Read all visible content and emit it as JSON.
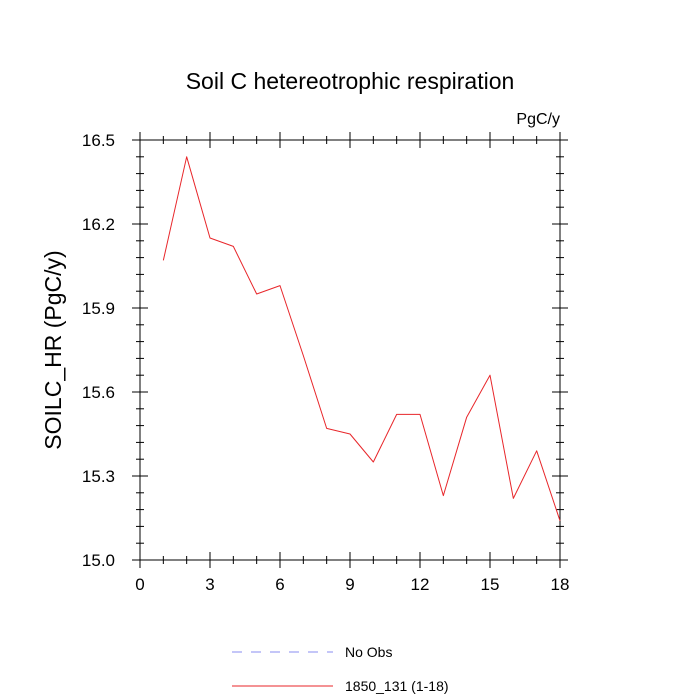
{
  "chart_data": {
    "type": "line",
    "title": "Soil C hetereotrophic respiration",
    "units": "PgC/y",
    "xlabel": "",
    "ylabel": "SOILC_HR  (PgC/y)",
    "xlim": [
      0,
      18
    ],
    "ylim": [
      15.0,
      16.5
    ],
    "x_ticks": [
      "0",
      "3",
      "6",
      "9",
      "12",
      "15",
      "18"
    ],
    "y_ticks": [
      "15.0",
      "15.3",
      "15.6",
      "15.9",
      "16.2",
      "16.5"
    ],
    "x_tick_values": [
      0,
      3,
      6,
      9,
      12,
      15,
      18
    ],
    "y_tick_values": [
      15.0,
      15.3,
      15.6,
      15.9,
      16.2,
      16.5
    ],
    "x_minor_step": 1,
    "y_minor_step": 0.06,
    "grid": false,
    "legend_position": "bottom",
    "series": [
      {
        "name": "No Obs",
        "color": "#8a8cf0",
        "style": "dashed",
        "x": [],
        "y": []
      },
      {
        "name": "1850_131 (1-18)",
        "color": "#e8262a",
        "style": "solid",
        "x": [
          1,
          2,
          3,
          4,
          5,
          6,
          7,
          8,
          9,
          10,
          11,
          12,
          13,
          14,
          15,
          16,
          17,
          18
        ],
        "y": [
          16.07,
          16.44,
          16.15,
          16.12,
          15.95,
          15.98,
          15.73,
          15.47,
          15.45,
          15.35,
          15.52,
          15.52,
          15.23,
          15.51,
          15.66,
          15.22,
          15.39,
          15.14
        ]
      }
    ]
  }
}
